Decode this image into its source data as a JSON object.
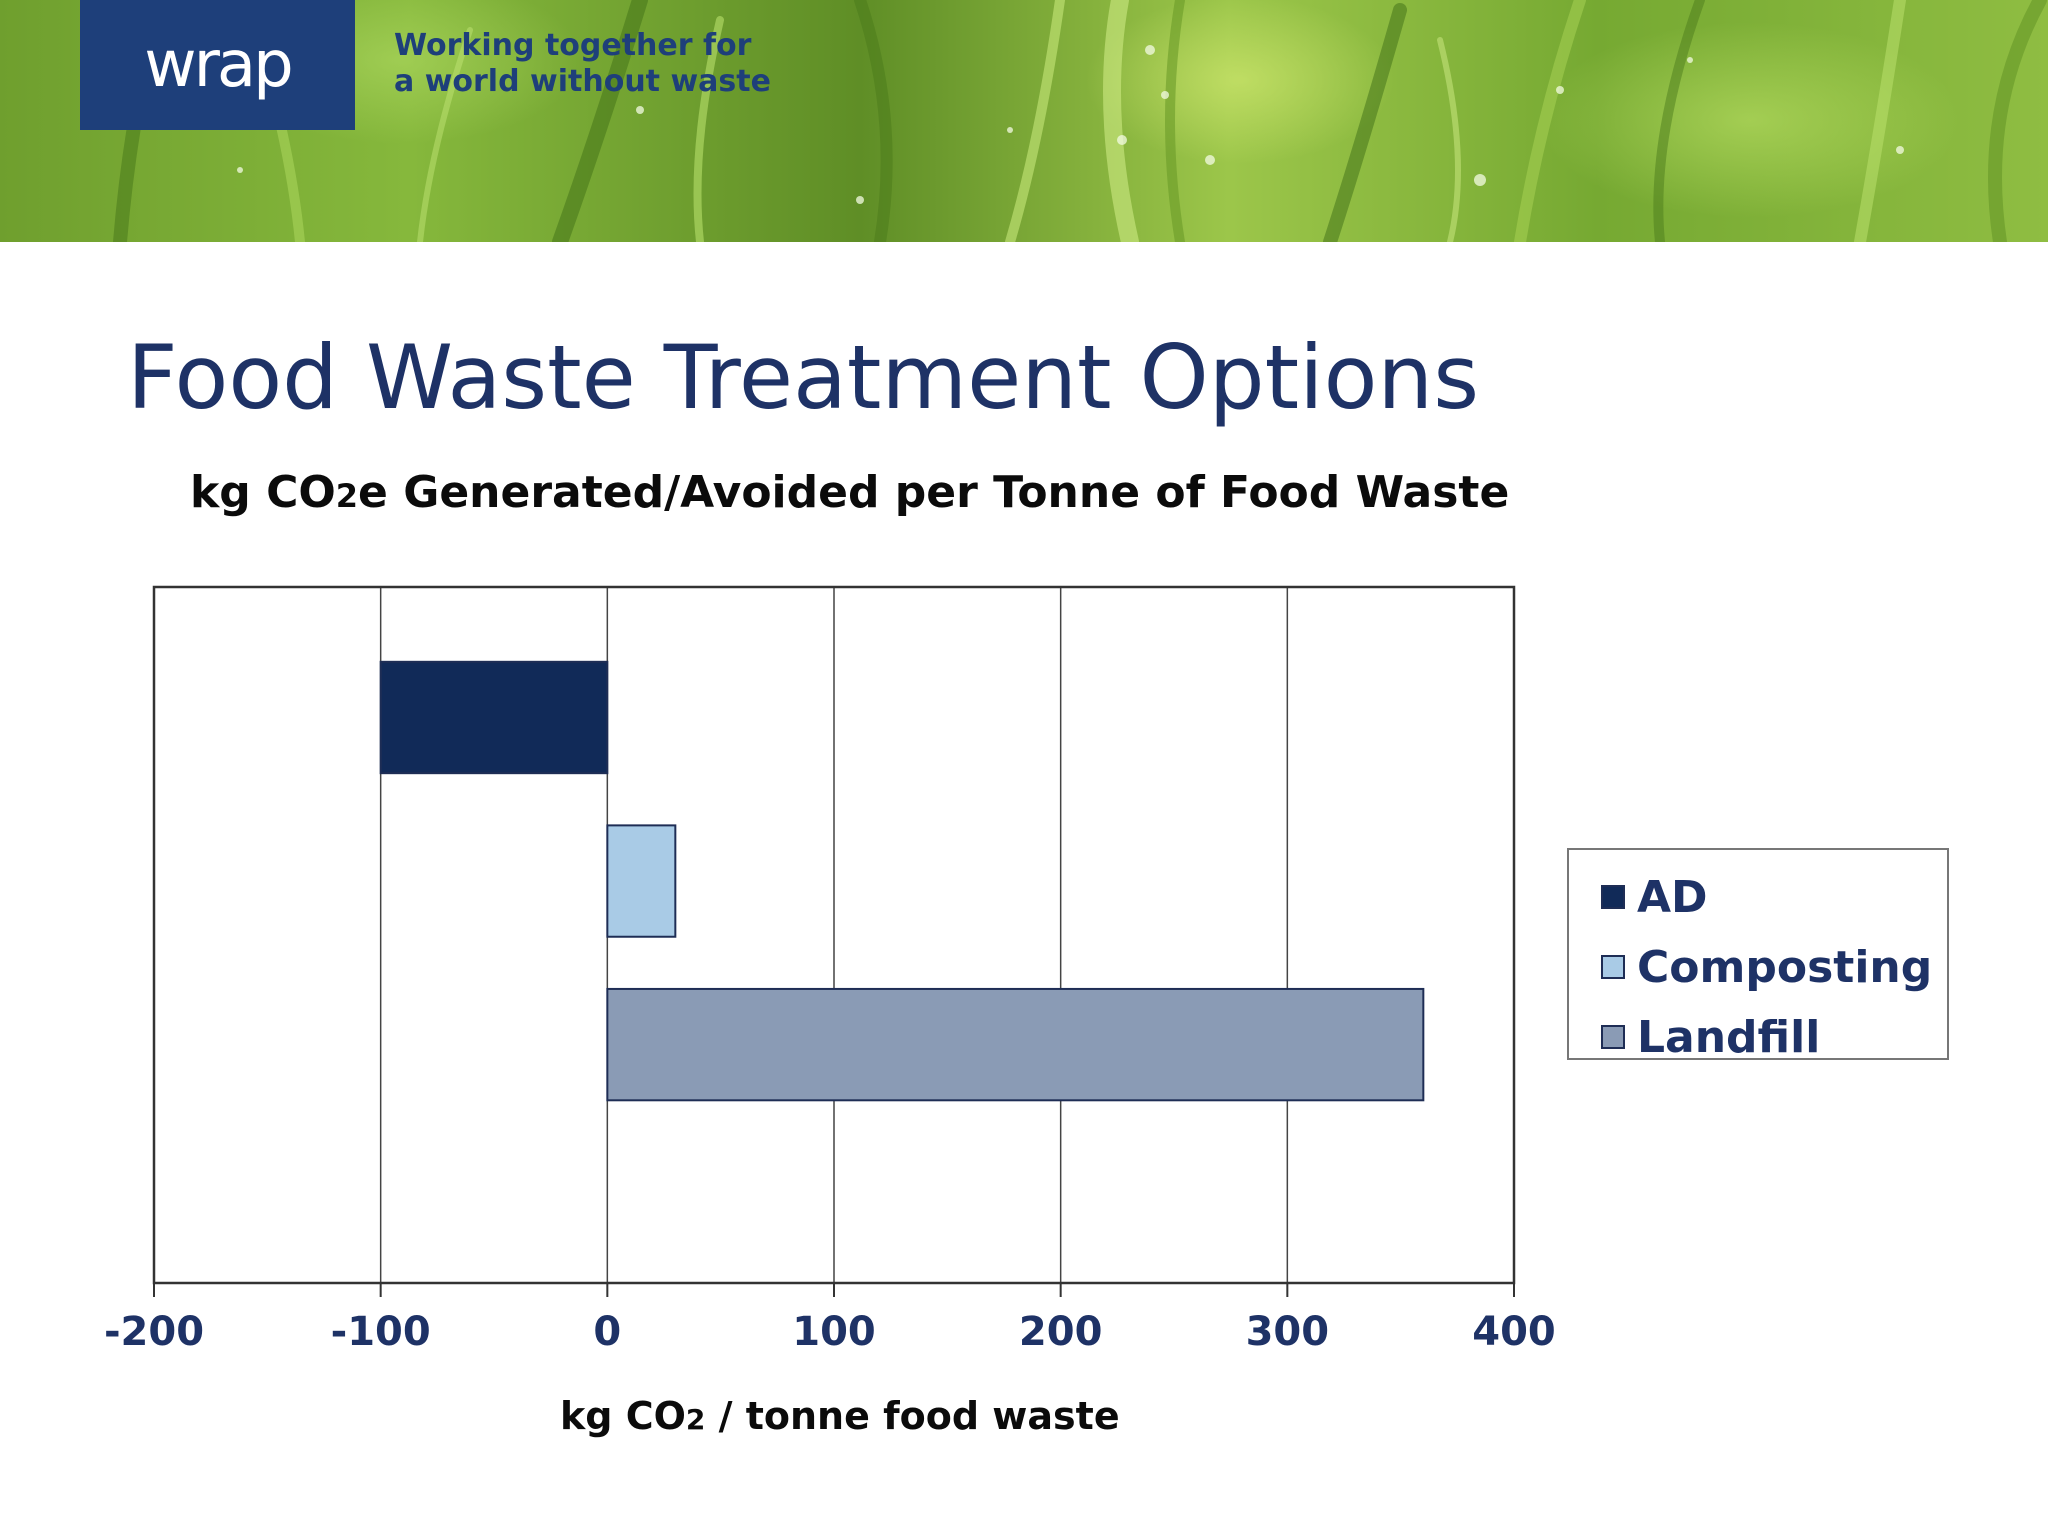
{
  "header": {
    "logo_text": "wrap",
    "tagline_line1": "Working together for",
    "tagline_line2": "a world without waste"
  },
  "page_title": "Food Waste Treatment Options",
  "chart_data": {
    "type": "bar",
    "orientation": "horizontal",
    "title": {
      "before": "kg CO",
      "sub": "2",
      "after": "e Generated/Avoided per Tonne of Food Waste"
    },
    "xlabel": {
      "before": "kg CO",
      "sub": "2",
      "after": " / tonne food waste"
    },
    "ylabel": "",
    "xlim": [
      -200,
      400
    ],
    "xticks": [
      -200,
      -100,
      0,
      100,
      200,
      300,
      400
    ],
    "xtick_labels": [
      "-200",
      "-100",
      "0",
      "100",
      "200",
      "300",
      "400"
    ],
    "grid": "vertical",
    "legend_position": "right",
    "series": [
      {
        "name": "AD",
        "value": -100,
        "color": "#112a58"
      },
      {
        "name": "Composting",
        "value": 30,
        "color": "#a9cbe6"
      },
      {
        "name": "Landfill",
        "value": 360,
        "color": "#8a9bb5"
      }
    ]
  },
  "colors": {
    "title": "#1e3266",
    "brand": "#1e3f7a",
    "axis_text": "#1e3266"
  }
}
